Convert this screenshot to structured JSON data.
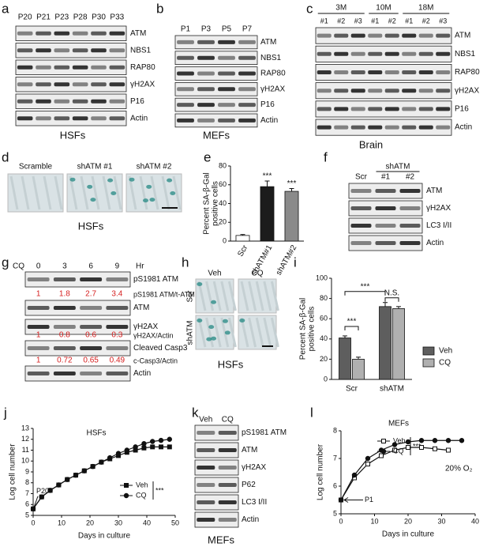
{
  "blots": {
    "a": {
      "letter": "a",
      "lanes": [
        "P20",
        "P21",
        "P23",
        "P28",
        "P30",
        "P33"
      ],
      "rows": [
        "ATM",
        "NBS1",
        "RAP80",
        "γH2AX",
        "P16",
        "Actin"
      ],
      "caption": "HSFs"
    },
    "b": {
      "letter": "b",
      "lanes": [
        "P1",
        "P3",
        "P5",
        "P7"
      ],
      "rows": [
        "ATM",
        "NBS1",
        "RAP80",
        "γH2AX",
        "P16",
        "Actin"
      ],
      "caption": "MEFs"
    },
    "c": {
      "letter": "c",
      "groups": [
        "3M",
        "10M",
        "18M"
      ],
      "lanes": [
        "#1",
        "#2",
        "#3",
        "#1",
        "#2",
        "#1",
        "#2",
        "#3"
      ],
      "rows": [
        "ATM",
        "NBS1",
        "RAP80",
        "γH2AX",
        "P16",
        "Actin"
      ],
      "caption": "Brain"
    },
    "f": {
      "letter": "f",
      "group": "shATM",
      "lanes": [
        "Scr",
        "#1",
        "#2"
      ],
      "rows": [
        "ATM",
        "γH2AX",
        "LC3 I/II",
        "Actin"
      ]
    },
    "g": {
      "letter": "g",
      "treatment": "CQ",
      "lanes": [
        "0",
        "3",
        "6",
        "9"
      ],
      "unit": "Hr",
      "rows": [
        "pS1981 ATM",
        "ATM",
        "γH2AX",
        "Cleaved Casp3",
        "Actin"
      ],
      "ratios": [
        {
          "label": "pS1981 ATM/t-ATM",
          "values": [
            1,
            1.8,
            2.7,
            3.4
          ]
        },
        {
          "label": "γH2AX/Actin",
          "values": [
            1,
            0.8,
            0.6,
            0.3
          ]
        },
        {
          "label": "c-Casp3/Actin",
          "values": [
            1,
            0.72,
            0.65,
            0.49
          ]
        }
      ]
    },
    "k": {
      "letter": "k",
      "lanes": [
        "Veh",
        "CQ"
      ],
      "rows": [
        "pS1981 ATM",
        "ATM",
        "γH2AX",
        "P62",
        "LC3 I/II",
        "Actin"
      ],
      "caption": "MEFs"
    }
  },
  "images": {
    "d": {
      "letter": "d",
      "columns": [
        "Scramble",
        "shATM #1",
        "shATM #2"
      ],
      "caption": "HSFs"
    },
    "h": {
      "letter": "h",
      "columns": [
        "Veh",
        "CQ"
      ],
      "rows": [
        "Scr",
        "shATM"
      ],
      "caption": "HSFs"
    }
  },
  "chart_data": [
    {
      "letter": "e",
      "type": "bar",
      "categories": [
        "Scr",
        "shATM#1",
        "shATM#2"
      ],
      "values": [
        6,
        58,
        53
      ],
      "errors": [
        1,
        6,
        3
      ],
      "colors": [
        "#ffffff",
        "#1c1c1c",
        "#8a8a8a"
      ],
      "ylim": [
        0,
        80
      ],
      "yticks": [
        0,
        20,
        40,
        60,
        80
      ],
      "ylabel": [
        "Percent SA-β-Gal",
        "positive cells"
      ],
      "annotations": [
        "***",
        "***"
      ]
    },
    {
      "letter": "i",
      "type": "bar",
      "categories": [
        "Scr",
        "shATM"
      ],
      "series": [
        {
          "name": "Veh",
          "color": "#5e5e5e",
          "values": [
            41,
            72
          ],
          "errors": [
            2,
            4
          ]
        },
        {
          "name": "CQ",
          "color": "#b0b0b0",
          "values": [
            20,
            70
          ],
          "errors": [
            2,
            2
          ]
        }
      ],
      "ylim": [
        0,
        100
      ],
      "yticks": [
        0,
        20,
        40,
        60,
        80,
        100
      ],
      "ylabel": [
        "Percent SA-β-Gal",
        "positive cells"
      ],
      "legend": "right",
      "annotations": [
        "***",
        "***",
        "N.S."
      ]
    },
    {
      "letter": "j",
      "type": "line",
      "title": "HSFs",
      "xlabel": "Days in culture",
      "ylabel": "Log cell number",
      "xlim": [
        0,
        50
      ],
      "xticks": [
        0,
        10,
        20,
        30,
        40,
        50
      ],
      "ylim": [
        5,
        13
      ],
      "yticks": [
        5,
        6,
        7,
        8,
        9,
        10,
        11,
        12,
        13
      ],
      "series": [
        {
          "name": "Veh",
          "color": "#111111",
          "marker": "square",
          "filled": true,
          "x": [
            0,
            3,
            6,
            9,
            12,
            15,
            18,
            21,
            24,
            27,
            30,
            33,
            36,
            39,
            42,
            45,
            48
          ],
          "values": [
            5.6,
            6.7,
            7.3,
            7.8,
            8.3,
            8.7,
            9.1,
            9.5,
            9.9,
            10.2,
            10.5,
            10.8,
            11.0,
            11.2,
            11.3,
            11.3,
            11.3
          ]
        },
        {
          "name": "CQ",
          "color": "#111111",
          "marker": "circle",
          "filled": true,
          "x": [
            0,
            3,
            6,
            9,
            12,
            15,
            18,
            21,
            24,
            27,
            30,
            33,
            36,
            39,
            42,
            45,
            48
          ],
          "values": [
            5.6,
            6.7,
            7.3,
            7.8,
            8.3,
            8.7,
            9.1,
            9.5,
            9.9,
            10.3,
            10.7,
            11.0,
            11.3,
            11.6,
            11.8,
            11.9,
            12.0
          ]
        }
      ],
      "annotations": [
        "P20",
        "***"
      ]
    },
    {
      "letter": "l",
      "type": "line",
      "title": "MEFs",
      "xlabel": "Days in culture",
      "ylabel": "Log cell number",
      "xlim": [
        0,
        40
      ],
      "xticks": [
        0,
        10,
        20,
        30,
        40
      ],
      "ylim": [
        5,
        8
      ],
      "yticks": [
        5,
        6,
        7,
        8
      ],
      "series": [
        {
          "name": "Veh",
          "color": "#111111",
          "marker": "square",
          "filled": false,
          "x": [
            0,
            4,
            8,
            12,
            16,
            20,
            24,
            28,
            32
          ],
          "values": [
            5.5,
            6.3,
            6.8,
            7.1,
            7.3,
            7.4,
            7.4,
            7.35,
            7.3
          ]
        },
        {
          "name": "CQ",
          "color": "#111111",
          "marker": "circle",
          "filled": true,
          "x": [
            0,
            4,
            8,
            12,
            16,
            20,
            24,
            28,
            32,
            36
          ],
          "values": [
            5.5,
            6.4,
            7.0,
            7.3,
            7.5,
            7.6,
            7.65,
            7.65,
            7.65,
            7.65
          ]
        }
      ],
      "annotations": [
        "P1",
        "***",
        "20% O₂"
      ]
    }
  ]
}
